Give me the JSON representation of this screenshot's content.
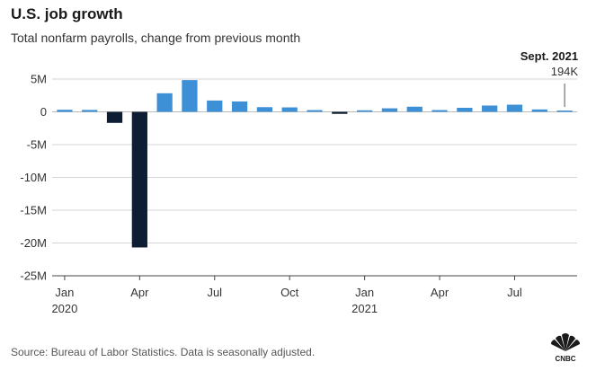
{
  "title": "U.S. job growth",
  "subtitle": "Total nonfarm payrolls, change from previous month",
  "source": "Source: Bureau of Labor Statistics. Data is seasonally adjusted.",
  "logo_text": "CNBC",
  "colors": {
    "positive": "#3d8fd6",
    "negative": "#0d1d33",
    "grid": "#d6d6d6",
    "axis": "#444444"
  },
  "chart_data": {
    "type": "bar",
    "title": "U.S. job growth",
    "subtitle": "Total nonfarm payrolls, change from previous month",
    "xlabel": "",
    "ylabel": "",
    "ylim": [
      -25000000,
      5000000
    ],
    "yticks": [
      {
        "value": 5000000,
        "label": "5M"
      },
      {
        "value": 0,
        "label": "0"
      },
      {
        "value": -5000000,
        "label": "-5M"
      },
      {
        "value": -10000000,
        "label": "-10M"
      },
      {
        "value": -15000000,
        "label": "-15M"
      },
      {
        "value": -20000000,
        "label": "-20M"
      },
      {
        "value": -25000000,
        "label": "-25M"
      }
    ],
    "categories": [
      "2020-01",
      "2020-02",
      "2020-03",
      "2020-04",
      "2020-05",
      "2020-06",
      "2020-07",
      "2020-08",
      "2020-09",
      "2020-10",
      "2020-11",
      "2020-12",
      "2021-01",
      "2021-02",
      "2021-03",
      "2021-04",
      "2021-05",
      "2021-06",
      "2021-07",
      "2021-08",
      "2021-09"
    ],
    "values": [
      315000,
      289000,
      -1683000,
      -20679000,
      2833000,
      4846000,
      1726000,
      1583000,
      716000,
      680000,
      264000,
      -306000,
      233000,
      536000,
      785000,
      269000,
      614000,
      962000,
      1091000,
      366000,
      194000
    ],
    "xticks": [
      {
        "index": 0,
        "label": "Jan",
        "sublabel": "2020"
      },
      {
        "index": 3,
        "label": "Apr",
        "sublabel": ""
      },
      {
        "index": 6,
        "label": "Jul",
        "sublabel": ""
      },
      {
        "index": 9,
        "label": "Oct",
        "sublabel": ""
      },
      {
        "index": 12,
        "label": "Jan",
        "sublabel": "2021"
      },
      {
        "index": 15,
        "label": "Apr",
        "sublabel": ""
      },
      {
        "index": 18,
        "label": "Jul",
        "sublabel": ""
      }
    ],
    "annotation": {
      "index": 20,
      "title": "Sept. 2021",
      "value_label": "194K"
    },
    "grid": true,
    "legend": "none"
  }
}
